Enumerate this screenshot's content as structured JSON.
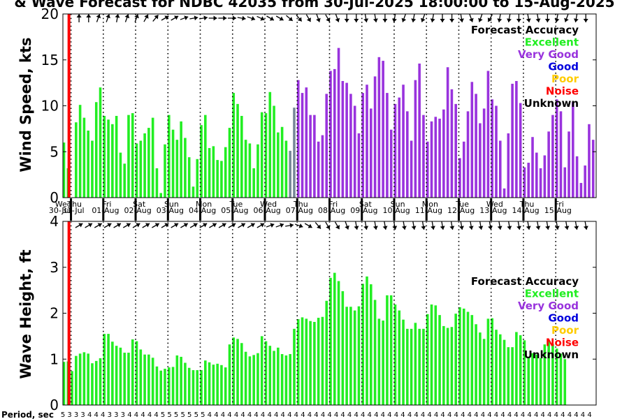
{
  "title": "& Wave Forecast for NDBC 42035 from 30-Jul-2025 18:00:00 to 15-Aug-2025",
  "colors": {
    "excellent": "#22ee22",
    "very_good": "#9933dd",
    "good": "#0000dd",
    "poor": "#ffcc00",
    "noise": "#ff0000",
    "unknown": "#000000",
    "transition": "#778899"
  },
  "legend": {
    "heading": "Forecast Accuracy",
    "items": [
      {
        "label": "Excellent",
        "color": "#22ee22"
      },
      {
        "label": "Very Good",
        "color": "#9933dd"
      },
      {
        "label": "Good",
        "color": "#0000dd"
      },
      {
        "label": "Poor",
        "color": "#ffcc00"
      },
      {
        "label": "Noise",
        "color": "#ff0000"
      },
      {
        "label": "Unknown",
        "color": "#000000"
      }
    ]
  },
  "days": [
    {
      "weekday": "Wed",
      "date": "30-Jul"
    },
    {
      "weekday": "Thu",
      "date": "31-Jul"
    },
    {
      "weekday": "Fri",
      "date": "01-Aug"
    },
    {
      "weekday": "Sat",
      "date": "02-Aug"
    },
    {
      "weekday": "Sun",
      "date": "03-Aug"
    },
    {
      "weekday": "Mon",
      "date": "04-Aug"
    },
    {
      "weekday": "Tue",
      "date": "05-Aug"
    },
    {
      "weekday": "Wed",
      "date": "06-Aug"
    },
    {
      "weekday": "Thu",
      "date": "07-Aug"
    },
    {
      "weekday": "Fri",
      "date": "08-Aug"
    },
    {
      "weekday": "Sat",
      "date": "09-Aug"
    },
    {
      "weekday": "Sun",
      "date": "10-Aug"
    },
    {
      "weekday": "Mon",
      "date": "11-Aug"
    },
    {
      "weekday": "Tue",
      "date": "12-Aug"
    },
    {
      "weekday": "Wed",
      "date": "13-Aug"
    },
    {
      "weekday": "Thu",
      "date": "14-Aug"
    },
    {
      "weekday": "Fri",
      "date": "15-Aug"
    }
  ],
  "period_label": "Period, sec",
  "periods": [
    5,
    3,
    3,
    3,
    4,
    4,
    4,
    3,
    3,
    3,
    4,
    4,
    4,
    4,
    4,
    5,
    5,
    5,
    5,
    5,
    5,
    5,
    4,
    4,
    4,
    4,
    4,
    4,
    4,
    4,
    4,
    4,
    4,
    4,
    4,
    4,
    4,
    4,
    4,
    4,
    4,
    4,
    4,
    4,
    4,
    4,
    4,
    4,
    4,
    4,
    4,
    4,
    4,
    4,
    4,
    4,
    4,
    4,
    4,
    4,
    4,
    4,
    4,
    4,
    4,
    4,
    4,
    4,
    4,
    4,
    4,
    4,
    4,
    4,
    4,
    4,
    4,
    4,
    4,
    4
  ],
  "chart_data": [
    {
      "type": "bar",
      "ylabel": "Wind Speed, kts",
      "ylim": [
        0,
        20
      ],
      "yticks": [
        0,
        5,
        10,
        15,
        20
      ],
      "x_start": "30-Jul-2025 18:00",
      "x_step_hours": 3,
      "noise_marker": "30-Jul-2025 22:00",
      "values": [
        6,
        3.2,
        0,
        8.2,
        10.1,
        8.7,
        7.3,
        6.2,
        10.4,
        12,
        8.9,
        8.5,
        8,
        8.9,
        4.9,
        3.7,
        9,
        9.2,
        5.9,
        6.2,
        7,
        7.6,
        8.7,
        3.2,
        0.5,
        5.8,
        9,
        7.4,
        6.3,
        8.3,
        6.5,
        4.4,
        1.2,
        4.2,
        7.9,
        9,
        5.4,
        5.6,
        4.1,
        4,
        5.5,
        7.6,
        11.4,
        10.2,
        8.9,
        6.3,
        5.9,
        3.2,
        5.8,
        9.3,
        9.2,
        11.5,
        10,
        7.1,
        7.7,
        6.2,
        5.1,
        9.8,
        12.8,
        11.4,
        12,
        9,
        9,
        6.1,
        6.8,
        11.3,
        13.8,
        14,
        16.3,
        12.7,
        12.5,
        11.3,
        10,
        7,
        11.4,
        12.3,
        9.7,
        13.2,
        15.3,
        14.9,
        11.4,
        7.4,
        10.2,
        10.9,
        12.3,
        9.4,
        6.2,
        12.8,
        14.6,
        9,
        6.1,
        8.3,
        8.8,
        8.6,
        9.6,
        14.2,
        11.8,
        10.2,
        4.3,
        6.1,
        9.4,
        12.6,
        11.3,
        8.1,
        9.7,
        13.8,
        10.7,
        10,
        6.2,
        1,
        7,
        12.4,
        12.7,
        10.3,
        3.3,
        3.8,
        6.6,
        4.9,
        3.2,
        4.6,
        7.2,
        9,
        10.7,
        9.4,
        3.3,
        7.2,
        10.4,
        4.5,
        1.6,
        3.5,
        8,
        6.3,
        9.4,
        8.9,
        7.7,
        6.9,
        6.4,
        4.4,
        6.5
      ],
      "quality_segments": [
        {
          "from": 0,
          "to": 55,
          "label": "Excellent"
        },
        {
          "from": 56,
          "to": 57,
          "label": "Excellent/Very Good transition"
        },
        {
          "from": 58,
          "to": 143,
          "label": "Very Good"
        }
      ]
    },
    {
      "type": "bar",
      "ylabel": "Wave Height, ft",
      "ylim": [
        0,
        4
      ],
      "yticks": [
        0,
        1,
        2,
        3,
        4
      ],
      "x_start": "30-Jul-2025 18:00",
      "x_step_hours": 3,
      "noise_marker": "30-Jul-2025 22:00",
      "values": [
        0.94,
        0.95,
        0.74,
        1.07,
        1.12,
        1.15,
        1.12,
        0.91,
        0.96,
        1.02,
        1.55,
        1.55,
        1.38,
        1.29,
        1.25,
        1.14,
        1.14,
        1.43,
        1.39,
        1.21,
        1.1,
        1.1,
        1.03,
        0.84,
        0.75,
        0.79,
        0.82,
        0.83,
        1.08,
        1.05,
        0.92,
        0.81,
        0.76,
        0.76,
        0.76,
        0.97,
        0.93,
        0.88,
        0.9,
        0.87,
        0.82,
        1.32,
        1.47,
        1.44,
        1.35,
        1.16,
        1.06,
        1.09,
        1.13,
        1.5,
        1.39,
        1.29,
        1.18,
        1.25,
        1.11,
        1.08,
        1.11,
        1.66,
        1.87,
        1.91,
        1.88,
        1.83,
        1.81,
        1.9,
        1.92,
        2.27,
        2.77,
        2.88,
        2.7,
        2.48,
        2.14,
        2.14,
        2.06,
        2.15,
        2.64,
        2.8,
        2.63,
        2.29,
        1.88,
        1.84,
        2.39,
        2.39,
        2.19,
        2.06,
        1.86,
        1.66,
        1.66,
        1.79,
        1.66,
        1.66,
        1.98,
        2.19,
        2.17,
        1.96,
        1.72,
        1.68,
        1.7,
        1.99,
        2.13,
        2.1,
        2.03,
        1.96,
        1.76,
        1.58,
        1.44,
        1.88,
        1.89,
        1.64,
        1.54,
        1.42,
        1.26,
        1.26,
        1.59,
        1.52,
        1.41,
        1.05,
        1.13,
        1.1,
        1.02,
        1.32,
        1.41,
        1.33,
        1.23,
        1.12,
        1.0
      ],
      "quality_segments": [
        {
          "from": 0,
          "to": 125,
          "label": "Excellent"
        }
      ]
    }
  ]
}
